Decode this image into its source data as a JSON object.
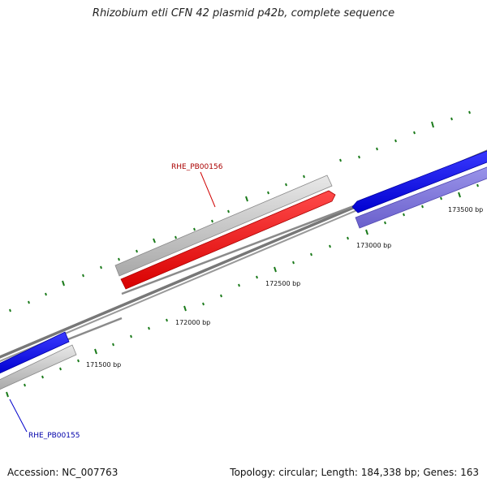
{
  "title": "Rhizobium etli CFN 42 plasmid p42b, complete sequence",
  "footer": {
    "accession": "Accession: NC_007763",
    "summary": "Topology: circular; Length: 184,338 bp; Genes: 163"
  },
  "colors": {
    "backbone": "#888888",
    "forward_gene": "#0a0af0",
    "reverse_gene_light": "#7c74d8",
    "other_gene": "#c8c8c8",
    "highlight_gene": "#ee0d0d",
    "ticks": "#1a7a1a"
  },
  "ticks": {
    "labels": [
      "171500 bp",
      "172000 bp",
      "172500 bp",
      "173000 bp",
      "173500 bp"
    ]
  },
  "genes": {
    "RHE_PB00156": {
      "label": "RHE_PB00156",
      "label_color": "#aa0000"
    },
    "RHE_PB00155": {
      "label": "RHE_PB00155",
      "label_color": "#0000aa"
    }
  }
}
